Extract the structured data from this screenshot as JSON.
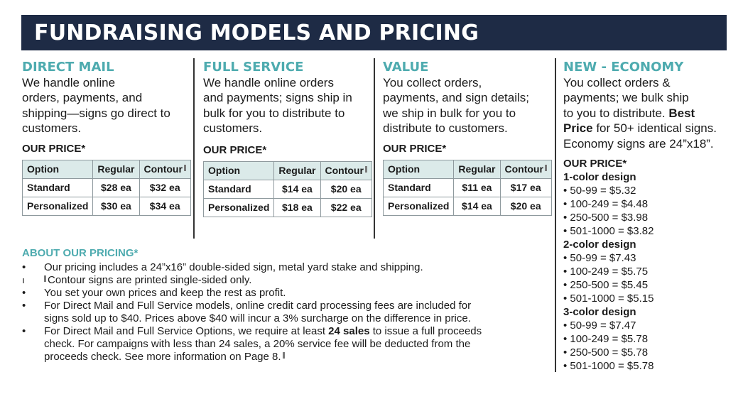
{
  "banner": {
    "title": "FUNDRAISING MODELS AND PRICING"
  },
  "table_headers": {
    "option": "Option",
    "regular": "Regular",
    "contour": "Contour"
  },
  "columns": [
    {
      "title": "DIRECT MAIL",
      "lines": [
        "We handle online",
        "orders, payments, and",
        "shipping—signs go direct to",
        "customers."
      ],
      "our_price": "OUR PRICE*",
      "rows": [
        {
          "option": "Standard",
          "regular": "$28 ea",
          "contour": "$32 ea"
        },
        {
          "option": "Personalized",
          "regular": "$30 ea",
          "contour": "$34 ea"
        }
      ]
    },
    {
      "title": "FULL SERVICE",
      "lines": [
        "We handle online orders",
        "and payments; signs ship in",
        "bulk for you to distribute to",
        "customers."
      ],
      "our_price": "OUR PRICE*",
      "rows": [
        {
          "option": "Standard",
          "regular": "$14 ea",
          "contour": "$20 ea"
        },
        {
          "option": "Personalized",
          "regular": "$18 ea",
          "contour": "$22 ea"
        }
      ]
    },
    {
      "title": "VALUE",
      "lines": [
        "You collect orders,",
        "payments, and sign details;",
        "we ship in bulk for you to",
        "distribute to customers."
      ],
      "our_price": "OUR PRICE*",
      "rows": [
        {
          "option": "Standard",
          "regular": "$11 ea",
          "contour": "$17 ea"
        },
        {
          "option": "Personalized",
          "regular": "$14 ea",
          "contour": "$20 ea"
        }
      ]
    }
  ],
  "economy": {
    "title": "NEW - ECONOMY",
    "line1": "You collect orders &",
    "line2": "payments; we bulk ship",
    "line3": "to you to distribute.",
    "best": "Best",
    "price_word": "Price",
    "line4_rest": "for 50+ identical signs.",
    "line5": "Economy signs are 24”x18”.",
    "our_price": "OUR PRICE*",
    "groups": [
      {
        "title": "1-color design",
        "tiers": [
          "• 50-99 = $5.32",
          "• 100-249 = $4.48",
          "• 250-500 = $3.98",
          "• 501-1000 = $3.82"
        ]
      },
      {
        "title": "2-color design",
        "tiers": [
          "• 50-99 = $7.43",
          "• 100-249 = $5.75",
          "• 250-500 = $5.45",
          "• 501-1000 = $5.15"
        ]
      },
      {
        "title": "3-color design",
        "tiers": [
          "• 50-99 = $7.47",
          "• 100-249 = $5.78",
          "• 250-500 = $5.78",
          "• 501-1000 = $5.78"
        ]
      }
    ]
  },
  "about": {
    "title": "ABOUT OUR PRICING*",
    "bullet": "•",
    "b1": "Our pricing includes a 24”x16” double-sided sign, metal yard stake and shipping.",
    "b2": "Contour signs are printed single-sided only.",
    "b3": "You set your own prices and keep the rest as profit.",
    "b4a": "For Direct Mail and Full Service models, online credit card processing fees are included for",
    "b4b": "signs sold up to $40. Prices above $40 will incur a 3% surcharge on the difference in price.",
    "b5a": "For Direct Mail and Full Service Options, we require at least",
    "b5bold": "24 sales",
    "b5b": "to issue a full proceeds",
    "b5c": "check. For campaigns with less than 24 sales, a 20% service fee will be deducted from the",
    "b5d": "proceeds check. See more information on Page 8."
  }
}
